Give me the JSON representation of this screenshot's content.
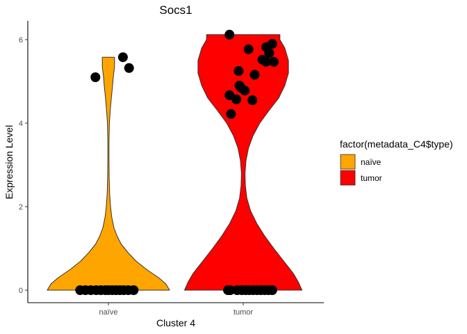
{
  "chart_data": {
    "type": "violin",
    "title": "Socs1",
    "xlabel": "Cluster 4",
    "ylabel": "Expression Level",
    "categories": [
      "naïve",
      "tumor"
    ],
    "ylim": [
      -0.3,
      6.45
    ],
    "yticks": [
      "0",
      "2",
      "4",
      "6"
    ],
    "grid": false,
    "legend": {
      "title": "factor(metadata_C4$type)",
      "placement": "right",
      "entries": [
        {
          "label": "naïve",
          "color": "#FFA500"
        },
        {
          "label": "tumor",
          "color": "#FF0000"
        }
      ]
    },
    "series": [
      {
        "category": "naïve",
        "color": "#FFA500",
        "max": 5.58,
        "density": [
          [
            0,
            1.0
          ],
          [
            0.15,
            0.94
          ],
          [
            0.3,
            0.82
          ],
          [
            0.5,
            0.62
          ],
          [
            0.7,
            0.45
          ],
          [
            0.9,
            0.32
          ],
          [
            1.1,
            0.21
          ],
          [
            1.3,
            0.14
          ],
          [
            1.5,
            0.09
          ],
          [
            1.75,
            0.055
          ],
          [
            2.0,
            0.035
          ],
          [
            2.3,
            0.02
          ],
          [
            2.7,
            0.012
          ],
          [
            3.2,
            0.009
          ],
          [
            3.6,
            0.01
          ],
          [
            4.0,
            0.016
          ],
          [
            4.3,
            0.03
          ],
          [
            4.6,
            0.048
          ],
          [
            4.9,
            0.068
          ],
          [
            5.1,
            0.08
          ],
          [
            5.35,
            0.1
          ],
          [
            5.58,
            0.1
          ]
        ],
        "points": [
          {
            "x": -0.17,
            "y": 5.1
          },
          {
            "x": 0.19,
            "y": 5.58
          },
          {
            "x": 0.27,
            "y": 5.32
          },
          {
            "x": -0.37,
            "y": 0
          },
          {
            "x": -0.3,
            "y": 0
          },
          {
            "x": -0.23,
            "y": 0
          },
          {
            "x": -0.16,
            "y": 0
          },
          {
            "x": -0.1,
            "y": 0
          },
          {
            "x": -0.04,
            "y": 0
          },
          {
            "x": 0.0,
            "y": 0
          },
          {
            "x": 0.05,
            "y": 0
          },
          {
            "x": 0.1,
            "y": 0
          },
          {
            "x": 0.15,
            "y": 0
          },
          {
            "x": 0.2,
            "y": 0
          },
          {
            "x": 0.26,
            "y": 0
          },
          {
            "x": 0.33,
            "y": 0
          }
        ]
      },
      {
        "category": "tumor",
        "color": "#FF0000",
        "max": 6.12,
        "density": [
          [
            0,
            0.96
          ],
          [
            0.2,
            0.9
          ],
          [
            0.4,
            0.82
          ],
          [
            0.7,
            0.66
          ],
          [
            1.0,
            0.5
          ],
          [
            1.3,
            0.35
          ],
          [
            1.6,
            0.22
          ],
          [
            1.9,
            0.12
          ],
          [
            2.2,
            0.06
          ],
          [
            2.5,
            0.035
          ],
          [
            2.8,
            0.03
          ],
          [
            3.1,
            0.045
          ],
          [
            3.4,
            0.085
          ],
          [
            3.7,
            0.16
          ],
          [
            4.0,
            0.27
          ],
          [
            4.3,
            0.42
          ],
          [
            4.6,
            0.58
          ],
          [
            4.9,
            0.68
          ],
          [
            5.2,
            0.74
          ],
          [
            5.5,
            0.74
          ],
          [
            5.8,
            0.68
          ],
          [
            6.0,
            0.6
          ],
          [
            6.12,
            0.6
          ]
        ],
        "points": [
          {
            "x": -0.18,
            "y": 6.12
          },
          {
            "x": 0.07,
            "y": 5.77
          },
          {
            "x": 0.3,
            "y": 5.82
          },
          {
            "x": 0.38,
            "y": 5.9
          },
          {
            "x": 0.34,
            "y": 5.68
          },
          {
            "x": 0.25,
            "y": 5.52
          },
          {
            "x": 0.3,
            "y": 5.47
          },
          {
            "x": 0.4,
            "y": 5.47
          },
          {
            "x": -0.06,
            "y": 5.25
          },
          {
            "x": 0.15,
            "y": 5.16
          },
          {
            "x": -0.05,
            "y": 4.9
          },
          {
            "x": -0.03,
            "y": 4.85
          },
          {
            "x": 0.02,
            "y": 4.78
          },
          {
            "x": -0.18,
            "y": 4.67
          },
          {
            "x": -0.09,
            "y": 4.57
          },
          {
            "x": 0.12,
            "y": 4.55
          },
          {
            "x": -0.16,
            "y": 4.22
          },
          {
            "x": -0.2,
            "y": 0
          },
          {
            "x": -0.17,
            "y": 0
          },
          {
            "x": -0.08,
            "y": 0
          },
          {
            "x": -0.02,
            "y": 0
          },
          {
            "x": 0.03,
            "y": 0
          },
          {
            "x": 0.08,
            "y": 0
          },
          {
            "x": 0.13,
            "y": 0
          },
          {
            "x": 0.18,
            "y": 0
          },
          {
            "x": 0.23,
            "y": 0
          },
          {
            "x": 0.28,
            "y": 0
          },
          {
            "x": 0.33,
            "y": 0
          },
          {
            "x": 0.38,
            "y": 0
          }
        ]
      }
    ]
  }
}
